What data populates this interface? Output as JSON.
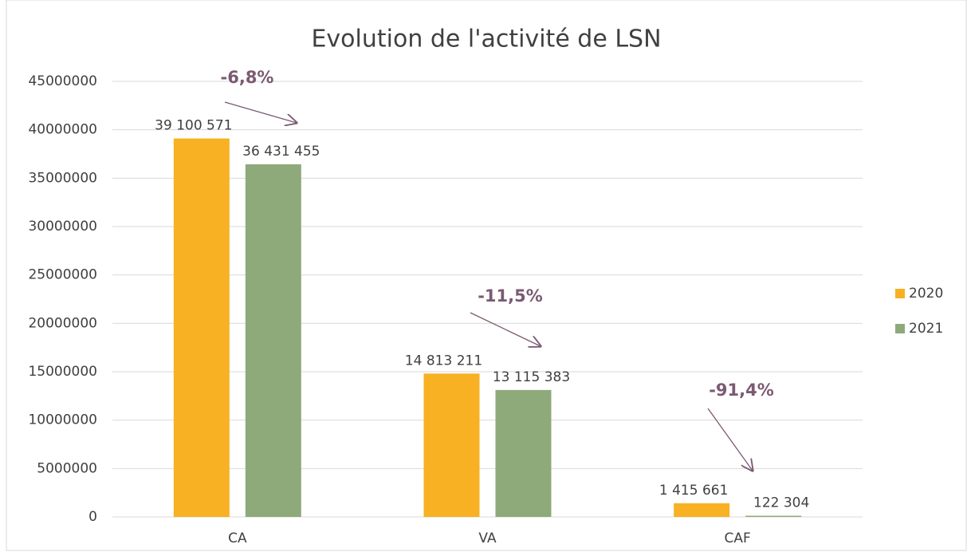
{
  "chart_data": {
    "type": "bar",
    "title": "Evolution de l'activité de LSN",
    "categories": [
      "CA",
      "VA",
      "CAF"
    ],
    "series": [
      {
        "name": "2020",
        "color": "#f7b122",
        "values": [
          39100571,
          14813211,
          1415661
        ],
        "value_labels": [
          "39 100 571",
          "14 813 211",
          "1 415 661"
        ]
      },
      {
        "name": "2021",
        "color": "#8eaa7b",
        "values": [
          36431455,
          13115383,
          122304
        ],
        "value_labels": [
          "36 431 455",
          "13 115 383",
          "122 304"
        ]
      }
    ],
    "annotations": [
      "-6,8%",
      "-11,5%",
      "-91,4%"
    ],
    "ylim": [
      0,
      45000000
    ],
    "yticks": [
      0,
      5000000,
      10000000,
      15000000,
      20000000,
      25000000,
      30000000,
      35000000,
      40000000,
      45000000
    ],
    "grid": true,
    "legend": "right"
  }
}
